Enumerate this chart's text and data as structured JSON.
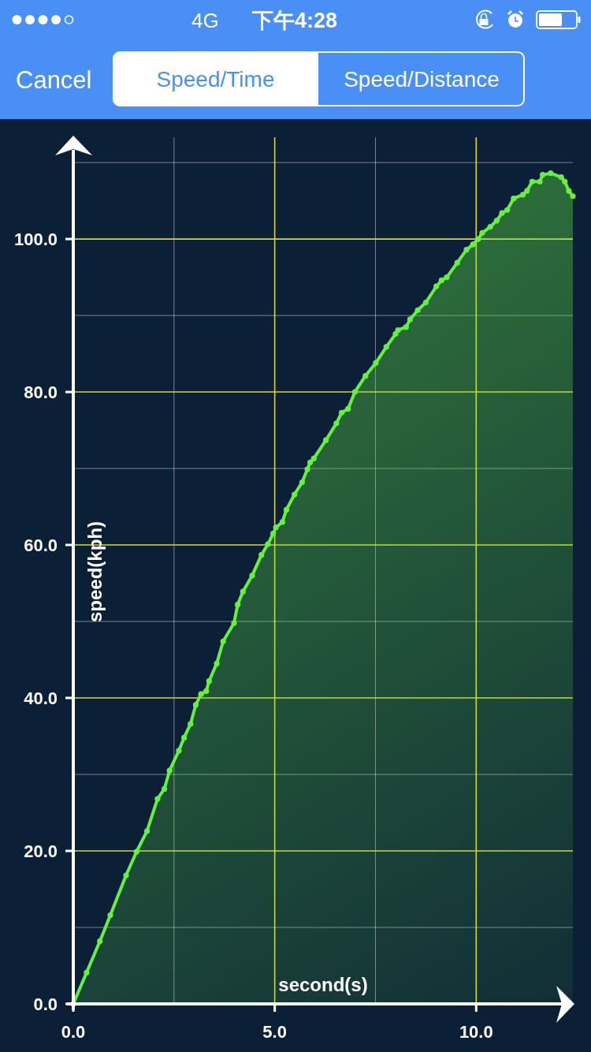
{
  "chart_data": {
    "type": "area",
    "marker": "circle",
    "grid": true,
    "xlabel": "second(s)",
    "ylabel": "speed(kph)",
    "annotations": [
      "4G",
      "下午4:28",
      "Cancel",
      "Speed/Time",
      "Speed/Distance"
    ],
    "xlim": [
      0,
      12.4
    ],
    "ylim": [
      0,
      113
    ],
    "xticks": [
      {
        "value": 0,
        "label": "0.0"
      },
      {
        "value": 2.5,
        "label": null
      },
      {
        "value": 5,
        "label": "5.0"
      },
      {
        "value": 7.5,
        "label": null
      },
      {
        "value": 10,
        "label": "10.0"
      }
    ],
    "yticks": [
      {
        "value": 0,
        "label": "0.0"
      },
      {
        "value": 10,
        "label": null
      },
      {
        "value": 20,
        "label": "20.0"
      },
      {
        "value": 30,
        "label": null
      },
      {
        "value": 40,
        "label": "40.0"
      },
      {
        "value": 50,
        "label": null
      },
      {
        "value": 60,
        "label": "60.0"
      },
      {
        "value": 70,
        "label": null
      },
      {
        "value": 80,
        "label": "80.0"
      },
      {
        "value": 90,
        "label": null
      },
      {
        "value": 100,
        "label": "100.0"
      },
      {
        "value": 110,
        "label": null
      }
    ],
    "x": [
      0,
      0.33,
      0.66,
      0.92,
      1.31,
      1.57,
      1.83,
      2.09,
      2.26,
      2.39,
      2.62,
      2.75,
      2.91,
      3.04,
      3.17,
      3.3,
      3.37,
      3.56,
      3.72,
      3.99,
      4.08,
      4.21,
      4.44,
      4.67,
      4.83,
      4.96,
      5.03,
      5.19,
      5.29,
      5.49,
      5.68,
      5.81,
      5.88,
      5.97,
      6.27,
      6.53,
      6.66,
      6.82,
      6.99,
      7.25,
      7.51,
      7.77,
      8.0,
      8.06,
      8.26,
      8.36,
      8.55,
      8.75,
      9.01,
      9.14,
      9.27,
      9.53,
      9.76,
      9.92,
      10.05,
      10.15,
      10.35,
      10.51,
      10.64,
      10.77,
      10.93,
      11.16,
      11.26,
      11.39,
      11.58,
      11.65,
      11.85,
      12.11,
      12.2,
      12.3,
      12.4
    ],
    "series": [
      {
        "color": "#66f03f",
        "values": [
          0,
          4.1,
          8.2,
          11.6,
          16.8,
          19.9,
          22.6,
          26.8,
          28.1,
          30.5,
          33.1,
          34.8,
          36.6,
          39.1,
          40.5,
          40.9,
          42.2,
          44.5,
          47.4,
          49.8,
          52.2,
          53.9,
          56.0,
          58.7,
          60.1,
          61.5,
          62.3,
          63.0,
          64.6,
          66.6,
          68.2,
          69.9,
          70.8,
          71.3,
          73.7,
          75.9,
          77.3,
          77.8,
          80.0,
          82.1,
          83.8,
          85.9,
          87.6,
          88.1,
          88.5,
          89.5,
          90.7,
          91.7,
          93.8,
          94.6,
          95.0,
          96.9,
          98.6,
          99.3,
          100.0,
          100.8,
          101.6,
          102.4,
          103.4,
          103.8,
          105.3,
          105.8,
          106.3,
          107.5,
          107.5,
          108.4,
          108.6,
          108.1,
          107.5,
          106.3,
          105.6
        ]
      }
    ]
  }
}
